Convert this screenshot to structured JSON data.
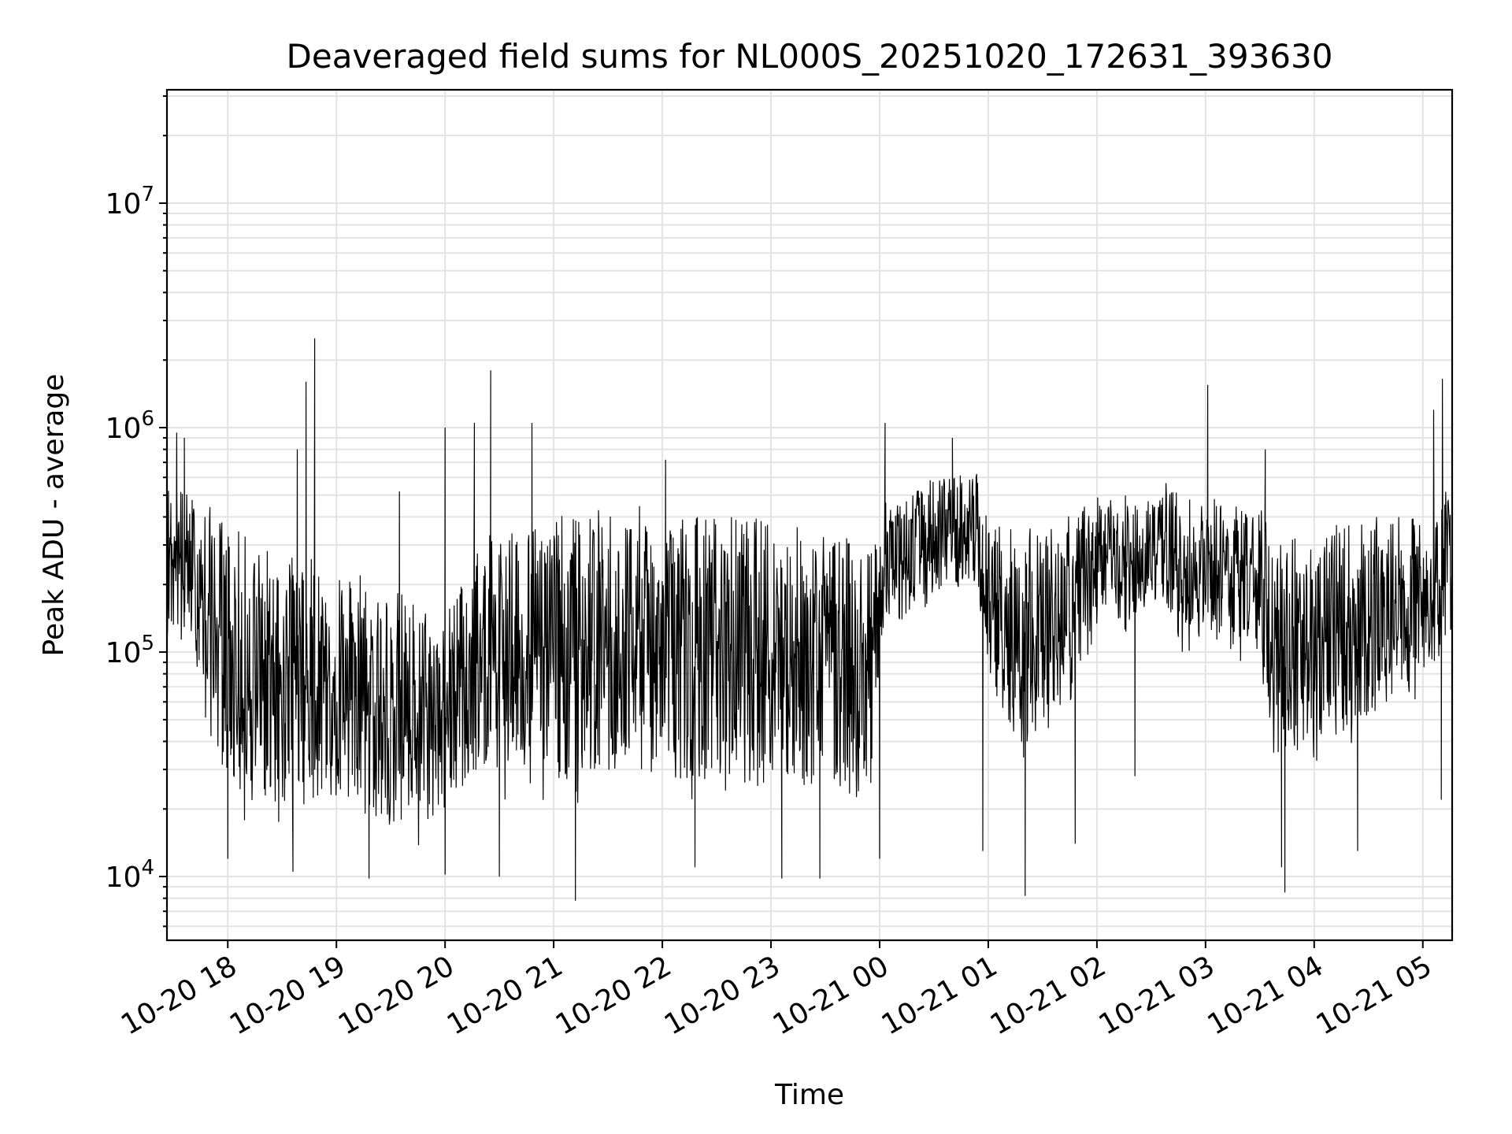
{
  "chart_data": {
    "type": "line",
    "title": "Deaveraged field sums for NL000S_20251020_172631_393630",
    "xlabel": "Time",
    "ylabel": "Peak ADU - average",
    "yscale": "log",
    "ylim": [
      5200,
      32000000
    ],
    "xlim_hours": [
      17.44,
      29.27
    ],
    "grid": true,
    "legend": "none",
    "line_color": "#000000",
    "x_ticks": [
      {
        "hour": 18,
        "label": "10-20 18"
      },
      {
        "hour": 19,
        "label": "10-20 19"
      },
      {
        "hour": 20,
        "label": "10-20 20"
      },
      {
        "hour": 21,
        "label": "10-20 21"
      },
      {
        "hour": 22,
        "label": "10-20 22"
      },
      {
        "hour": 23,
        "label": "10-20 23"
      },
      {
        "hour": 24,
        "label": "10-21 00"
      },
      {
        "hour": 25,
        "label": "10-21 01"
      },
      {
        "hour": 26,
        "label": "10-21 02"
      },
      {
        "hour": 27,
        "label": "10-21 03"
      },
      {
        "hour": 28,
        "label": "10-21 04"
      },
      {
        "hour": 29,
        "label": "10-21 05"
      }
    ],
    "y_ticks": [
      {
        "value": 10000,
        "base": "10",
        "exp": "4"
      },
      {
        "value": 100000,
        "base": "10",
        "exp": "5"
      },
      {
        "value": 1000000,
        "base": "10",
        "exp": "6"
      },
      {
        "value": 10000000,
        "base": "10",
        "exp": "7"
      }
    ],
    "envelope": [
      {
        "hour": 17.44,
        "low": 100000,
        "high": 600000
      },
      {
        "hour": 17.7,
        "low": 90000,
        "high": 500000
      },
      {
        "hour": 17.85,
        "low": 30000,
        "high": 450000
      },
      {
        "hour": 18.1,
        "low": 16000,
        "high": 350000
      },
      {
        "hour": 18.5,
        "low": 15000,
        "high": 280000
      },
      {
        "hour": 19.0,
        "low": 17000,
        "high": 250000
      },
      {
        "hour": 19.5,
        "low": 12000,
        "high": 200000
      },
      {
        "hour": 20.0,
        "low": 14000,
        "high": 150000
      },
      {
        "hour": 20.3,
        "low": 25000,
        "high": 300000
      },
      {
        "hour": 20.6,
        "low": 20000,
        "high": 400000
      },
      {
        "hour": 21.0,
        "low": 20000,
        "high": 400000
      },
      {
        "hour": 21.5,
        "low": 20000,
        "high": 450000
      },
      {
        "hour": 22.0,
        "low": 20000,
        "high": 450000
      },
      {
        "hour": 22.5,
        "low": 20000,
        "high": 420000
      },
      {
        "hour": 23.0,
        "low": 18000,
        "high": 400000
      },
      {
        "hour": 23.5,
        "low": 18000,
        "high": 350000
      },
      {
        "hour": 23.95,
        "low": 15000,
        "high": 300000
      },
      {
        "hour": 24.0,
        "low": 100000,
        "high": 450000
      },
      {
        "hour": 24.5,
        "low": 150000,
        "high": 600000
      },
      {
        "hour": 24.9,
        "low": 180000,
        "high": 650000
      },
      {
        "hour": 25.0,
        "low": 60000,
        "high": 400000
      },
      {
        "hour": 25.3,
        "low": 30000,
        "high": 350000
      },
      {
        "hour": 25.7,
        "low": 40000,
        "high": 400000
      },
      {
        "hour": 26.0,
        "low": 100000,
        "high": 500000
      },
      {
        "hour": 26.3,
        "low": 120000,
        "high": 500000
      },
      {
        "hour": 26.6,
        "low": 150000,
        "high": 600000
      },
      {
        "hour": 26.8,
        "low": 80000,
        "high": 500000
      },
      {
        "hour": 27.0,
        "low": 100000,
        "high": 500000
      },
      {
        "hour": 27.5,
        "low": 80000,
        "high": 450000
      },
      {
        "hour": 27.6,
        "low": 25000,
        "high": 350000
      },
      {
        "hour": 28.0,
        "low": 30000,
        "high": 350000
      },
      {
        "hour": 28.5,
        "low": 40000,
        "high": 400000
      },
      {
        "hour": 29.0,
        "low": 60000,
        "high": 400000
      },
      {
        "hour": 29.27,
        "low": 100000,
        "high": 600000
      }
    ],
    "spikes": [
      {
        "hour": 17.53,
        "value": 950000
      },
      {
        "hour": 17.6,
        "value": 900000
      },
      {
        "hour": 18.64,
        "value": 800000
      },
      {
        "hour": 18.72,
        "value": 1600000
      },
      {
        "hour": 18.8,
        "value": 2500000
      },
      {
        "hour": 19.58,
        "value": 520000
      },
      {
        "hour": 20.0,
        "value": 1000000
      },
      {
        "hour": 20.27,
        "value": 1050000
      },
      {
        "hour": 20.42,
        "value": 1800000
      },
      {
        "hour": 20.8,
        "value": 1050000
      },
      {
        "hour": 22.03,
        "value": 720000
      },
      {
        "hour": 24.05,
        "value": 1050000
      },
      {
        "hour": 24.67,
        "value": 900000
      },
      {
        "hour": 27.02,
        "value": 1550000
      },
      {
        "hour": 27.55,
        "value": 800000
      },
      {
        "hour": 29.18,
        "value": 1650000
      },
      {
        "hour": 29.1,
        "value": 1200000
      }
    ],
    "dips": [
      {
        "hour": 18.0,
        "value": 12000
      },
      {
        "hour": 18.6,
        "value": 10500
      },
      {
        "hour": 19.3,
        "value": 9800
      },
      {
        "hour": 20.0,
        "value": 10200
      },
      {
        "hour": 20.5,
        "value": 10000
      },
      {
        "hour": 21.2,
        "value": 7800
      },
      {
        "hour": 22.3,
        "value": 11000
      },
      {
        "hour": 23.1,
        "value": 9800
      },
      {
        "hour": 23.45,
        "value": 9800
      },
      {
        "hour": 24.0,
        "value": 12000
      },
      {
        "hour": 24.95,
        "value": 13000
      },
      {
        "hour": 25.34,
        "value": 8200
      },
      {
        "hour": 25.8,
        "value": 14000
      },
      {
        "hour": 26.35,
        "value": 28000
      },
      {
        "hour": 27.7,
        "value": 11000
      },
      {
        "hour": 27.73,
        "value": 8500
      },
      {
        "hour": 28.4,
        "value": 13000
      },
      {
        "hour": 29.17,
        "value": 22000
      }
    ]
  }
}
